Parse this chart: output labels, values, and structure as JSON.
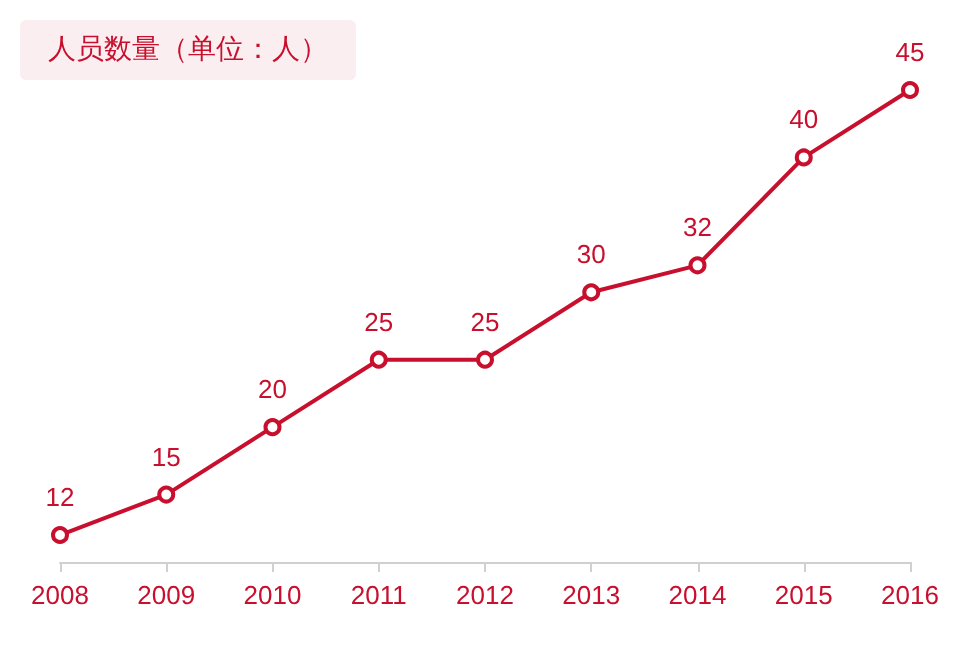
{
  "chart_data": {
    "type": "line",
    "title": "人员数量（单位：人）",
    "categories": [
      "2008",
      "2009",
      "2010",
      "2011",
      "2012",
      "2013",
      "2014",
      "2015",
      "2016"
    ],
    "series": [
      {
        "color": "#c8102e",
        "values": [
          12,
          15,
          20,
          25,
          25,
          30,
          32,
          40,
          45
        ]
      }
    ],
    "data_labels": true,
    "marker": "circle",
    "line_style": "solid",
    "grid": false,
    "tick_labels": "x"
  }
}
